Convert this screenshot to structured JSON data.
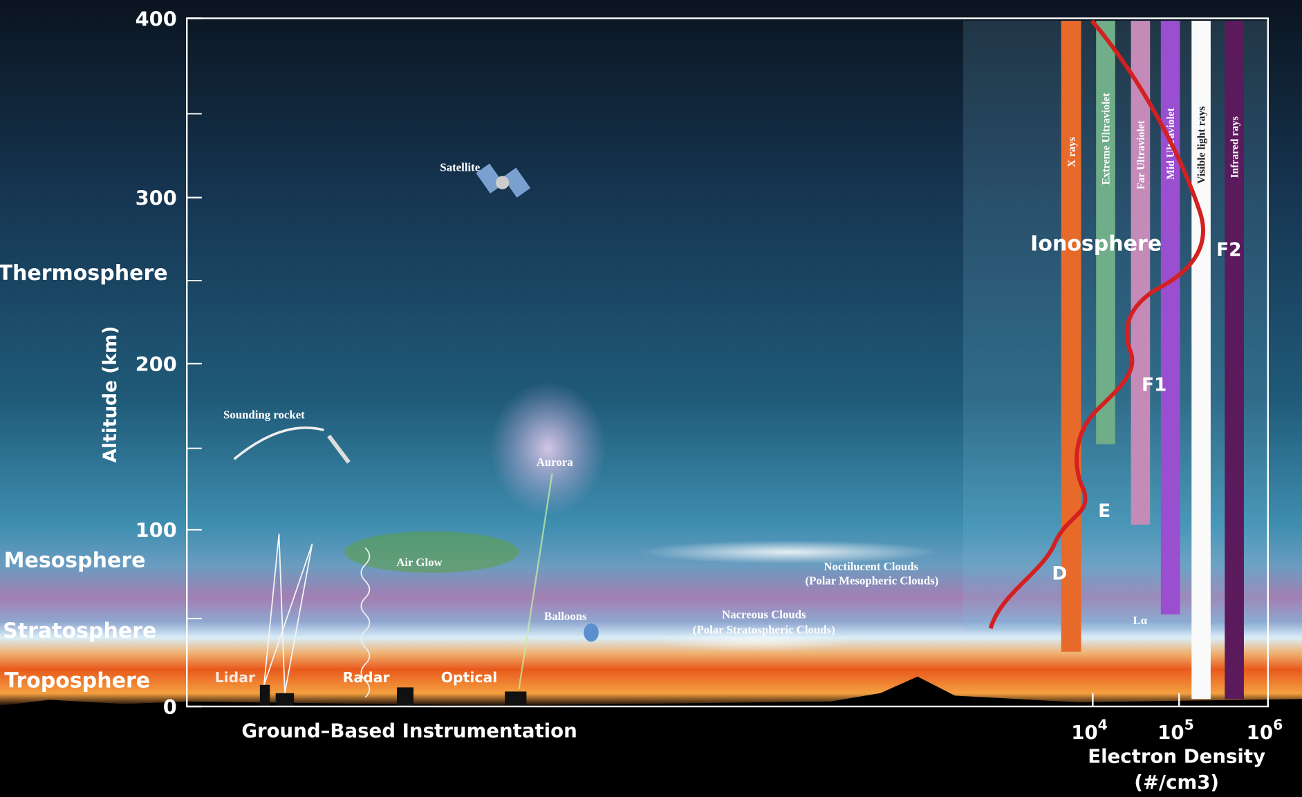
{
  "axis": {
    "label": "Altitude (km)",
    "ticks": [
      0,
      100,
      200,
      300,
      400
    ]
  },
  "layers": [
    "Thermosphere",
    "Mesosphere",
    "Stratosphere",
    "Troposphere"
  ],
  "instrumentation": {
    "title": "Ground–Based Instrumentation",
    "items": [
      "Lidar",
      "Radar",
      "Optical"
    ]
  },
  "features": [
    "Satellite",
    "Sounding rocket",
    "Aurora",
    "Air Glow",
    "Balloons"
  ],
  "clouds": [
    {
      "name": "Noctilucent Clouds",
      "alt_name": "(Polar Mesopheric Clouds)"
    },
    {
      "name": "Nacreous Clouds",
      "alt_name": "(Polar Stratospheric Clouds)"
    }
  ],
  "ionosphere": {
    "title": "Ionosphere",
    "regions": [
      "D",
      "E",
      "F1",
      "F2"
    ]
  },
  "radiation": [
    "X rays",
    "Extreme Ultraviolet",
    "Far Ultraviolet",
    "Mid Ultraviolet",
    "Visible light rays",
    "Infrared rays"
  ],
  "lyman_label": "Lα",
  "density_axis": {
    "title": "Electron Density",
    "unit": "(#/cm3)",
    "ticks": [
      {
        "base": "10",
        "exponent": "4"
      },
      {
        "base": "10",
        "exponent": "5"
      },
      {
        "base": "10",
        "exponent": "6"
      }
    ]
  }
}
